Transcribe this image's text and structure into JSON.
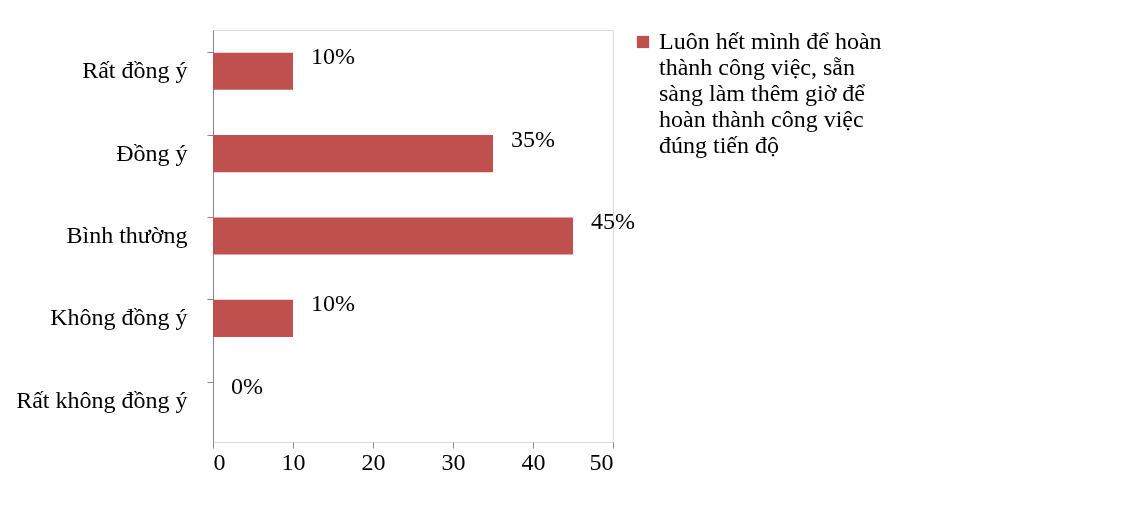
{
  "chart_data": {
    "type": "bar",
    "orientation": "horizontal",
    "categories": [
      "Rất đồng ý",
      "Đồng ý",
      "Bình thường",
      "Không đồng ý",
      "Rất không đồng ý"
    ],
    "series": [
      {
        "name": "Luôn hết mình để hoàn thành công việc, sẵn sàng làm thêm giờ để hoàn thành công việc đúng tiến độ",
        "color": "#c0504d",
        "values": [
          10,
          35,
          45,
          10,
          0
        ],
        "value_labels": [
          "10%",
          "35%",
          "45%",
          "10%",
          "0%"
        ]
      }
    ],
    "xlim": [
      0,
      50
    ],
    "xticks": [
      0,
      10,
      20,
      30,
      40,
      50
    ],
    "grid": false,
    "legend": "right"
  }
}
